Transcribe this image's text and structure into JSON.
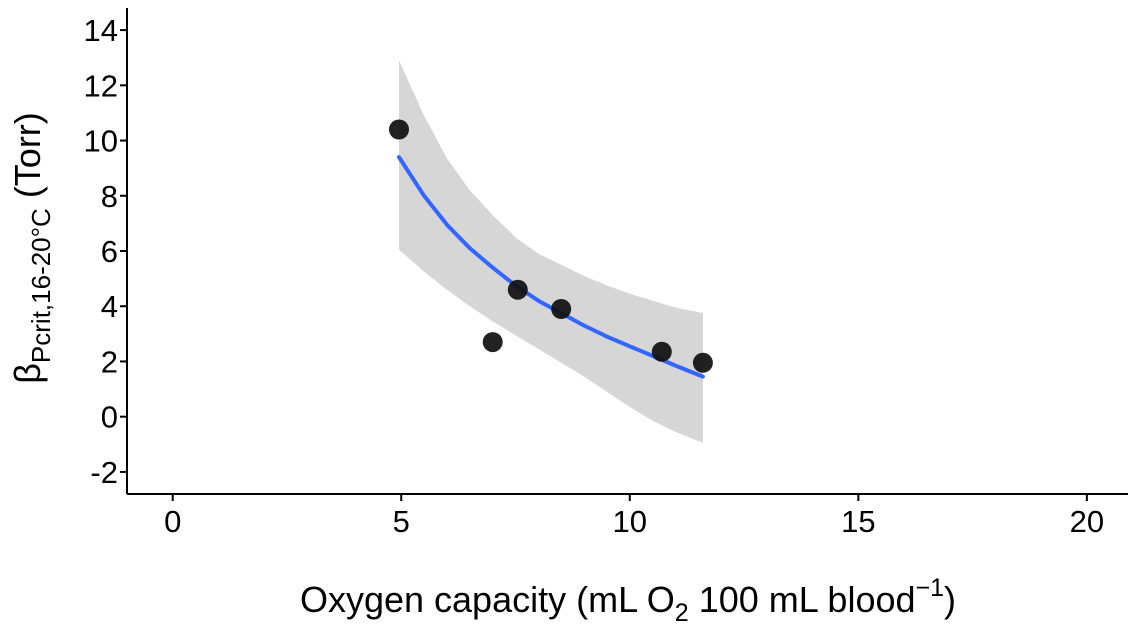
{
  "chart_data": {
    "type": "scatter",
    "title": "",
    "xlabel": {
      "main": "Oxygen capacity (mL O",
      "sub": "2",
      "mid": " 100 mL blood",
      "sup": "−1",
      "end": ")"
    },
    "ylabel": {
      "symbol": "β",
      "sub": "Pcrit,16-20°C",
      "end": " (Torr)"
    },
    "xlim": [
      -1,
      20.9
    ],
    "ylim": [
      -2.8,
      14.8
    ],
    "x_ticks": [
      0,
      5,
      10,
      15,
      20
    ],
    "y_ticks": [
      -2,
      0,
      2,
      4,
      6,
      8,
      10,
      12,
      14
    ],
    "x_tick_labels": [
      "0",
      "5",
      "10",
      "15",
      "20"
    ],
    "y_tick_labels": [
      "-2",
      "0",
      "2",
      "4",
      "6",
      "8",
      "10",
      "12",
      "14"
    ],
    "grid": false,
    "points": [
      {
        "x": 4.95,
        "y": 10.4
      },
      {
        "x": 7.0,
        "y": 2.7
      },
      {
        "x": 7.55,
        "y": 4.6
      },
      {
        "x": 8.5,
        "y": 3.9
      },
      {
        "x": 10.7,
        "y": 2.35
      },
      {
        "x": 11.6,
        "y": 1.95
      }
    ],
    "fit": {
      "x": [
        4.95,
        5.5,
        6.0,
        6.5,
        7.0,
        7.5,
        8.0,
        8.5,
        9.0,
        9.5,
        10.0,
        10.5,
        11.0,
        11.6
      ],
      "y": [
        9.4,
        8.0,
        6.95,
        6.1,
        5.4,
        4.75,
        4.2,
        3.75,
        3.3,
        2.9,
        2.55,
        2.2,
        1.85,
        1.45
      ],
      "lower": [
        6.05,
        5.25,
        4.6,
        4.0,
        3.45,
        2.95,
        2.45,
        1.95,
        1.45,
        0.9,
        0.35,
        -0.15,
        -0.55,
        -0.95
      ],
      "upper": [
        12.9,
        10.9,
        9.35,
        8.2,
        7.3,
        6.5,
        5.9,
        5.5,
        5.1,
        4.75,
        4.45,
        4.2,
        3.95,
        3.75
      ]
    },
    "colors": {
      "point": "#111111",
      "fit_line": "#3366ff",
      "ribbon": "#d6d6d6",
      "axis": "#000000"
    }
  }
}
